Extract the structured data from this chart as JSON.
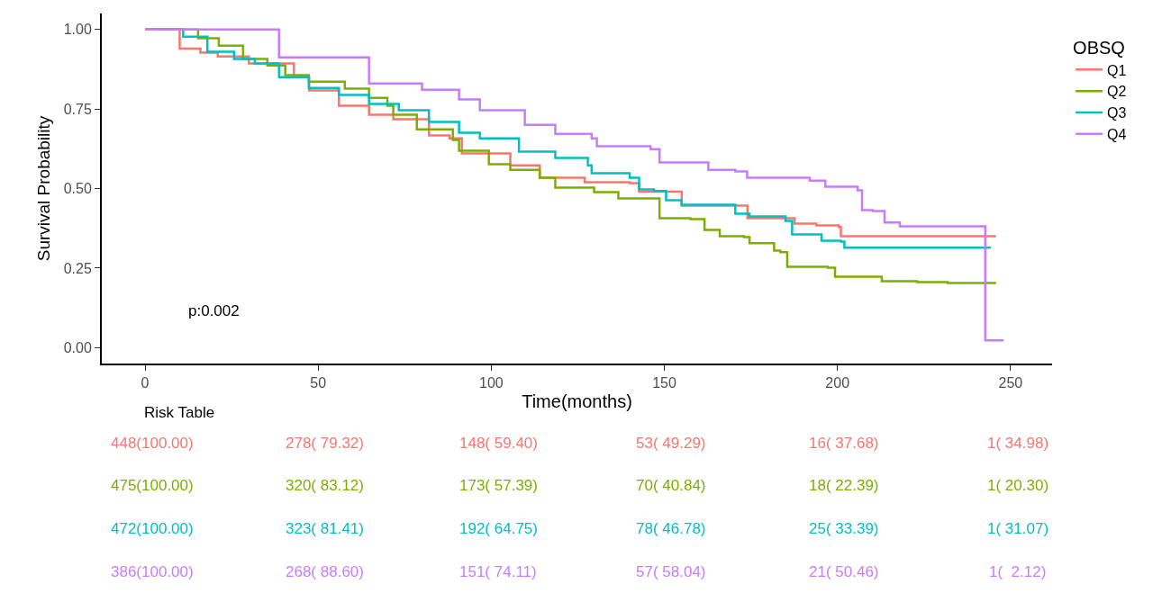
{
  "chart_data": {
    "type": "step",
    "xlabel": "Time(months)",
    "ylabel": "Survival Probability",
    "legend_title": "OBSQ",
    "legend": "right",
    "grid": false,
    "line_style": "solid",
    "marker": "none",
    "xlim": [
      -12.5,
      262
    ],
    "xticks": [
      0,
      50,
      100,
      150,
      200,
      250
    ],
    "ylim": [
      -0.05,
      1.05
    ],
    "yticks": [
      {
        "value": 0,
        "label": "0.00"
      },
      {
        "value": 0.25,
        "label": "0.25"
      },
      {
        "value": 0.5,
        "label": "0.50"
      },
      {
        "value": 0.75,
        "label": "0.75"
      },
      {
        "value": 1,
        "label": "1.00"
      }
    ],
    "series": [
      {
        "name": "Q1",
        "color": "#f8766d",
        "x": [
          0,
          10,
          16,
          21,
          30,
          43,
          47.4,
          56,
          64.7,
          71.7,
          82,
          88,
          91.5,
          98.5,
          105.5,
          114,
          127,
          140,
          142.7,
          150.5,
          155,
          166,
          174,
          181.7,
          187.6,
          193.9,
          200.4,
          201,
          245.8
        ],
        "values": [
          1,
          0.94,
          0.927,
          0.915,
          0.893,
          0.85,
          0.808,
          0.76,
          0.732,
          0.718,
          0.667,
          0.658,
          0.61,
          0.61,
          0.573,
          0.534,
          0.52,
          0.517,
          0.49,
          0.49,
          0.446,
          0.446,
          0.407,
          0.407,
          0.39,
          0.384,
          0.379,
          0.35,
          0.35
        ]
      },
      {
        "name": "Q2",
        "color": "#7cae00",
        "x": [
          0,
          15.3,
          21.3,
          28.3,
          35.3,
          40.5,
          47.3,
          57.7,
          64.7,
          70,
          71.7,
          78.5,
          88.9,
          90.7,
          99.3,
          105.5,
          114,
          118.5,
          129.7,
          136.7,
          148.6,
          157.5,
          161.6,
          166,
          173,
          174.6,
          181.7,
          183.5,
          185.5,
          197.2,
          199.3,
          210.2,
          212.8,
          223,
          231.8,
          245.8
        ],
        "values": [
          1,
          0.972,
          0.949,
          0.907,
          0.887,
          0.856,
          0.836,
          0.814,
          0.785,
          0.76,
          0.732,
          0.686,
          0.653,
          0.619,
          0.576,
          0.559,
          0.534,
          0.503,
          0.489,
          0.469,
          0.407,
          0.404,
          0.37,
          0.35,
          0.347,
          0.328,
          0.305,
          0.3,
          0.254,
          0.251,
          0.223,
          0.223,
          0.209,
          0.206,
          0.203,
          0.203
        ]
      },
      {
        "name": "Q3",
        "color": "#00bfc4",
        "x": [
          0,
          11,
          18,
          25.7,
          31.7,
          38.7,
          47.3,
          56,
          64.7,
          73.3,
          82,
          90.7,
          96.7,
          108,
          118.5,
          127.9,
          129,
          140,
          142.7,
          147,
          150.5,
          155,
          166,
          170.5,
          174.6,
          185,
          186.9,
          195.4,
          201,
          202,
          244
        ],
        "values": [
          1,
          0.977,
          0.93,
          0.907,
          0.893,
          0.85,
          0.816,
          0.794,
          0.766,
          0.746,
          0.709,
          0.675,
          0.658,
          0.616,
          0.596,
          0.573,
          0.548,
          0.534,
          0.497,
          0.492,
          0.463,
          0.449,
          0.449,
          0.421,
          0.412,
          0.398,
          0.356,
          0.336,
          0.333,
          0.314,
          0.311
        ]
      },
      {
        "name": "Q4",
        "color": "#c77cff",
        "x": [
          0,
          38.7,
          64.7,
          80,
          90.7,
          96.7,
          109.7,
          118.5,
          129,
          130.5,
          146,
          148.6,
          157.5,
          162.7,
          170.5,
          173.9,
          189.5,
          192,
          196.5,
          205.8,
          207.1,
          210.2,
          213.6,
          218,
          242.7,
          248
        ],
        "values": [
          1,
          0.912,
          0.83,
          0.81,
          0.78,
          0.746,
          0.7,
          0.672,
          0.658,
          0.633,
          0.624,
          0.582,
          0.582,
          0.559,
          0.554,
          0.534,
          0.534,
          0.525,
          0.506,
          0.494,
          0.432,
          0.429,
          0.393,
          0.381,
          0.023,
          0.023
        ]
      }
    ],
    "annotations": [
      "p:0.002",
      "Risk Table",
      "448(100.00)",
      "278( 79.32)",
      "148( 59.40)",
      "53( 49.29)",
      "16( 37.68)",
      "1( 34.98)",
      "475(100.00)",
      "320( 83.12)",
      "173( 57.39)",
      "70( 40.84)",
      "18( 22.39)",
      "1( 20.30)",
      "472(100.00)",
      "323( 81.41)",
      "192( 64.75)",
      "78( 46.78)",
      "25( 33.39)",
      "1( 31.07)",
      "386(100.00)",
      "268( 88.60)",
      "151( 74.11)",
      "57( 58.04)",
      "21( 50.46)",
      "1(  2.12)"
    ]
  }
}
